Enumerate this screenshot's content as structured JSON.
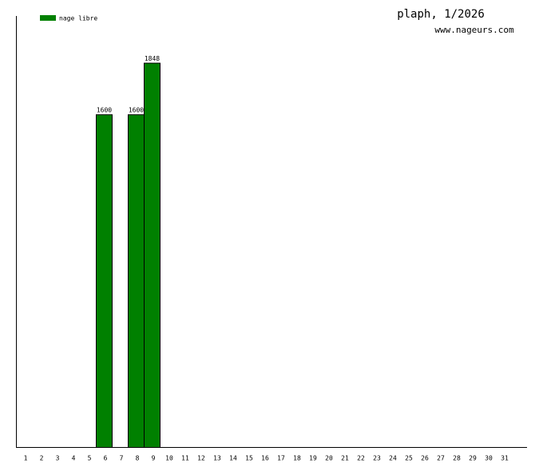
{
  "chart_data": {
    "type": "bar",
    "title": "plaph, 1/2026",
    "subtitle": "www.nageurs.com",
    "categories": [
      "1",
      "2",
      "3",
      "4",
      "5",
      "6",
      "7",
      "8",
      "9",
      "10",
      "11",
      "12",
      "13",
      "14",
      "15",
      "16",
      "17",
      "18",
      "19",
      "20",
      "21",
      "22",
      "23",
      "24",
      "25",
      "26",
      "27",
      "28",
      "29",
      "30",
      "31"
    ],
    "series": [
      {
        "name": "nage libre",
        "color": "#008000",
        "values": [
          null,
          null,
          null,
          null,
          null,
          1600,
          null,
          1600,
          1848,
          null,
          null,
          null,
          null,
          null,
          null,
          null,
          null,
          null,
          null,
          null,
          null,
          null,
          null,
          null,
          null,
          null,
          null,
          null,
          null,
          null,
          null
        ]
      }
    ],
    "ylim": [
      0,
      2073
    ],
    "legend": "top-left"
  }
}
